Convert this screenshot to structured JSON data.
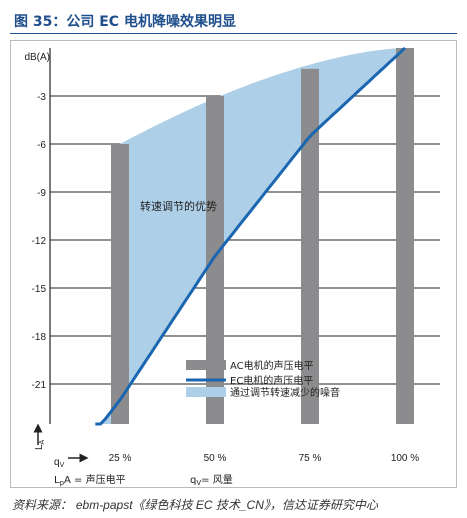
{
  "figure": {
    "title": "图 35：公司 EC 电机降噪效果明显",
    "source_prefix": "资料来源：",
    "source_text": "ebm-papst《绿色科技 EC 技术_CN》，信达证券研究中心"
  },
  "chart_data": {
    "type": "bar",
    "y_unit": "dB(A)",
    "ylim": [
      -24,
      0
    ],
    "yticks": [
      -3,
      -6,
      -9,
      -12,
      -15,
      -18,
      -21
    ],
    "y_axis_symbol": "LA",
    "x_axis_symbol": "qV",
    "categories": [
      "25 %",
      "50 %",
      "75 %",
      "100 %"
    ],
    "series": [
      {
        "name": "AC电机的声压电平",
        "type": "bar",
        "color": "#8c8c8e",
        "values": [
          -6,
          -3,
          -1.3,
          0
        ]
      },
      {
        "name": "EC电机的声压电平",
        "type": "line",
        "color": "#1a66b0",
        "x": [
          0.185,
          0.25,
          0.5,
          0.75,
          1.0
        ],
        "values": [
          -24,
          -22,
          -13,
          -5.5,
          0
        ]
      },
      {
        "name": "通过调节转速减少的噪音",
        "type": "area",
        "color": "#aecfe8"
      }
    ],
    "annotation": "转速调节的优势",
    "footer_labels": [
      "LpA = 声压电平",
      "qV= 风量"
    ],
    "grid": true
  }
}
